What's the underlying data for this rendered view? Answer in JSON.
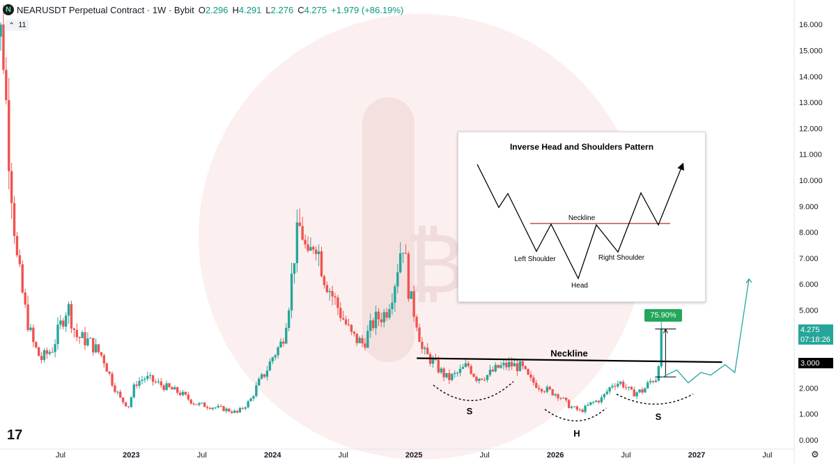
{
  "header": {
    "logo": "N",
    "symbol_line": "NEARUSDT Perpetual Contract · 1W · Bybit",
    "open_label": "O",
    "open": "2.296",
    "high_label": "H",
    "high": "4.291",
    "low_label": "L",
    "low": "2.276",
    "close_label": "C",
    "close": "4.275",
    "change": "+1.979 (+86.19%)"
  },
  "indicator_badge": {
    "chevron": "⌃",
    "count": "11"
  },
  "price_tag": "4.275",
  "timer_tag": "07:18:26",
  "neckline_tag": "3.000",
  "pct_box": "75.90%",
  "annotations": {
    "neckline": "Neckline",
    "s_left": "S",
    "h": "H",
    "s_right": "S"
  },
  "inset": {
    "title": "Inverse Head and Shoulders Pattern",
    "neckline": "Neckline",
    "left_shoulder": "Left Shoulder",
    "head": "Head",
    "right_shoulder": "Right Shoulder"
  },
  "tv_logo": "17",
  "colors": {
    "up": "#26a69a",
    "down": "#ef5350",
    "projection": "#26a69a",
    "watermark": "#f7e8e8"
  },
  "chart_data": {
    "type": "candlestick",
    "timeframe": "1W",
    "ylim": [
      0,
      16.5
    ],
    "y_ticks": [
      "0.000",
      "1.000",
      "2.000",
      "3.000",
      "4.000",
      "5.000",
      "6.000",
      "7.000",
      "8.000",
      "9.000",
      "10.000",
      "11.000",
      "12.000",
      "13.000",
      "14.000",
      "15.000",
      "16.000"
    ],
    "x_ticks": [
      {
        "label": "Jul",
        "t": 2022.5
      },
      {
        "label": "2023",
        "t": 2023.0,
        "bold": true
      },
      {
        "label": "Jul",
        "t": 2023.5
      },
      {
        "label": "2024",
        "t": 2024.0,
        "bold": true
      },
      {
        "label": "Jul",
        "t": 2024.5
      },
      {
        "label": "2025",
        "t": 2025.0,
        "bold": true
      },
      {
        "label": "Jul",
        "t": 2025.5
      },
      {
        "label": "2026",
        "t": 2026.0,
        "bold": true
      },
      {
        "label": "Jul",
        "t": 2026.5
      },
      {
        "label": "2027",
        "t": 2027.0,
        "bold": true
      },
      {
        "label": "Jul",
        "t": 2027.5
      }
    ],
    "close_path": [
      [
        2022.0,
        9.0
      ],
      [
        2022.04,
        15.9
      ],
      [
        2022.09,
        15.5
      ],
      [
        2022.13,
        11.5
      ],
      [
        2022.19,
        7.0
      ],
      [
        2022.25,
        5.0
      ],
      [
        2022.3,
        3.8
      ],
      [
        2022.36,
        3.1
      ],
      [
        2022.44,
        3.5
      ],
      [
        2022.55,
        5.2
      ],
      [
        2022.61,
        4.0
      ],
      [
        2022.7,
        3.8
      ],
      [
        2022.8,
        3.2
      ],
      [
        2022.86,
        2.3
      ],
      [
        2022.92,
        1.6
      ],
      [
        2022.98,
        1.3
      ],
      [
        2023.03,
        2.2
      ],
      [
        2023.1,
        2.4
      ],
      [
        2023.18,
        2.2
      ],
      [
        2023.26,
        2.0
      ],
      [
        2023.35,
        1.8
      ],
      [
        2023.45,
        1.4
      ],
      [
        2023.55,
        1.3
      ],
      [
        2023.65,
        1.2
      ],
      [
        2023.75,
        1.05
      ],
      [
        2023.84,
        1.5
      ],
      [
        2023.9,
        2.2
      ],
      [
        2023.95,
        2.6
      ],
      [
        2024.0,
        3.2
      ],
      [
        2024.07,
        3.8
      ],
      [
        2024.12,
        5.5
      ],
      [
        2024.16,
        7.5
      ],
      [
        2024.2,
        8.3
      ],
      [
        2024.25,
        6.8
      ],
      [
        2024.3,
        7.9
      ],
      [
        2024.36,
        6.4
      ],
      [
        2024.42,
        5.6
      ],
      [
        2024.48,
        4.9
      ],
      [
        2024.56,
        4.0
      ],
      [
        2024.64,
        3.7
      ],
      [
        2024.72,
        4.6
      ],
      [
        2024.8,
        4.9
      ],
      [
        2024.86,
        6.0
      ],
      [
        2024.92,
        7.8
      ],
      [
        2024.97,
        5.5
      ],
      [
        2025.02,
        4.6
      ],
      [
        2025.06,
        3.4
      ],
      [
        2025.12,
        3.1
      ],
      [
        2025.18,
        2.7
      ],
      [
        2025.24,
        2.35
      ],
      [
        2025.32,
        2.6
      ],
      [
        2025.38,
        2.9
      ],
      [
        2025.44,
        2.4
      ],
      [
        2025.52,
        2.5
      ],
      [
        2025.6,
        2.8
      ],
      [
        2025.68,
        2.9
      ],
      [
        2025.76,
        2.8
      ],
      [
        2025.82,
        2.3
      ],
      [
        2025.88,
        2.1
      ],
      [
        2025.95,
        1.9
      ],
      [
        2026.02,
        1.75
      ],
      [
        2026.1,
        1.3
      ],
      [
        2026.18,
        1.1
      ],
      [
        2026.25,
        1.4
      ],
      [
        2026.33,
        1.6
      ],
      [
        2026.41,
        2.2
      ],
      [
        2026.47,
        2.2
      ],
      [
        2026.54,
        1.8
      ],
      [
        2026.62,
        1.9
      ],
      [
        2026.68,
        2.3
      ],
      [
        2026.72,
        2.4
      ],
      [
        2026.75,
        4.275
      ]
    ],
    "neckline": {
      "from": [
        2025.02,
        3.15
      ],
      "to": [
        2027.18,
        3.0
      ]
    },
    "projection_path": [
      [
        2026.75,
        2.4
      ],
      [
        2026.86,
        2.7
      ],
      [
        2026.94,
        2.2
      ],
      [
        2027.03,
        2.6
      ],
      [
        2027.1,
        2.5
      ],
      [
        2027.2,
        2.9
      ],
      [
        2027.27,
        2.6
      ],
      [
        2027.37,
        6.2
      ]
    ],
    "measured_move": {
      "x": 2026.78,
      "from": 2.43,
      "to": 4.275
    }
  }
}
